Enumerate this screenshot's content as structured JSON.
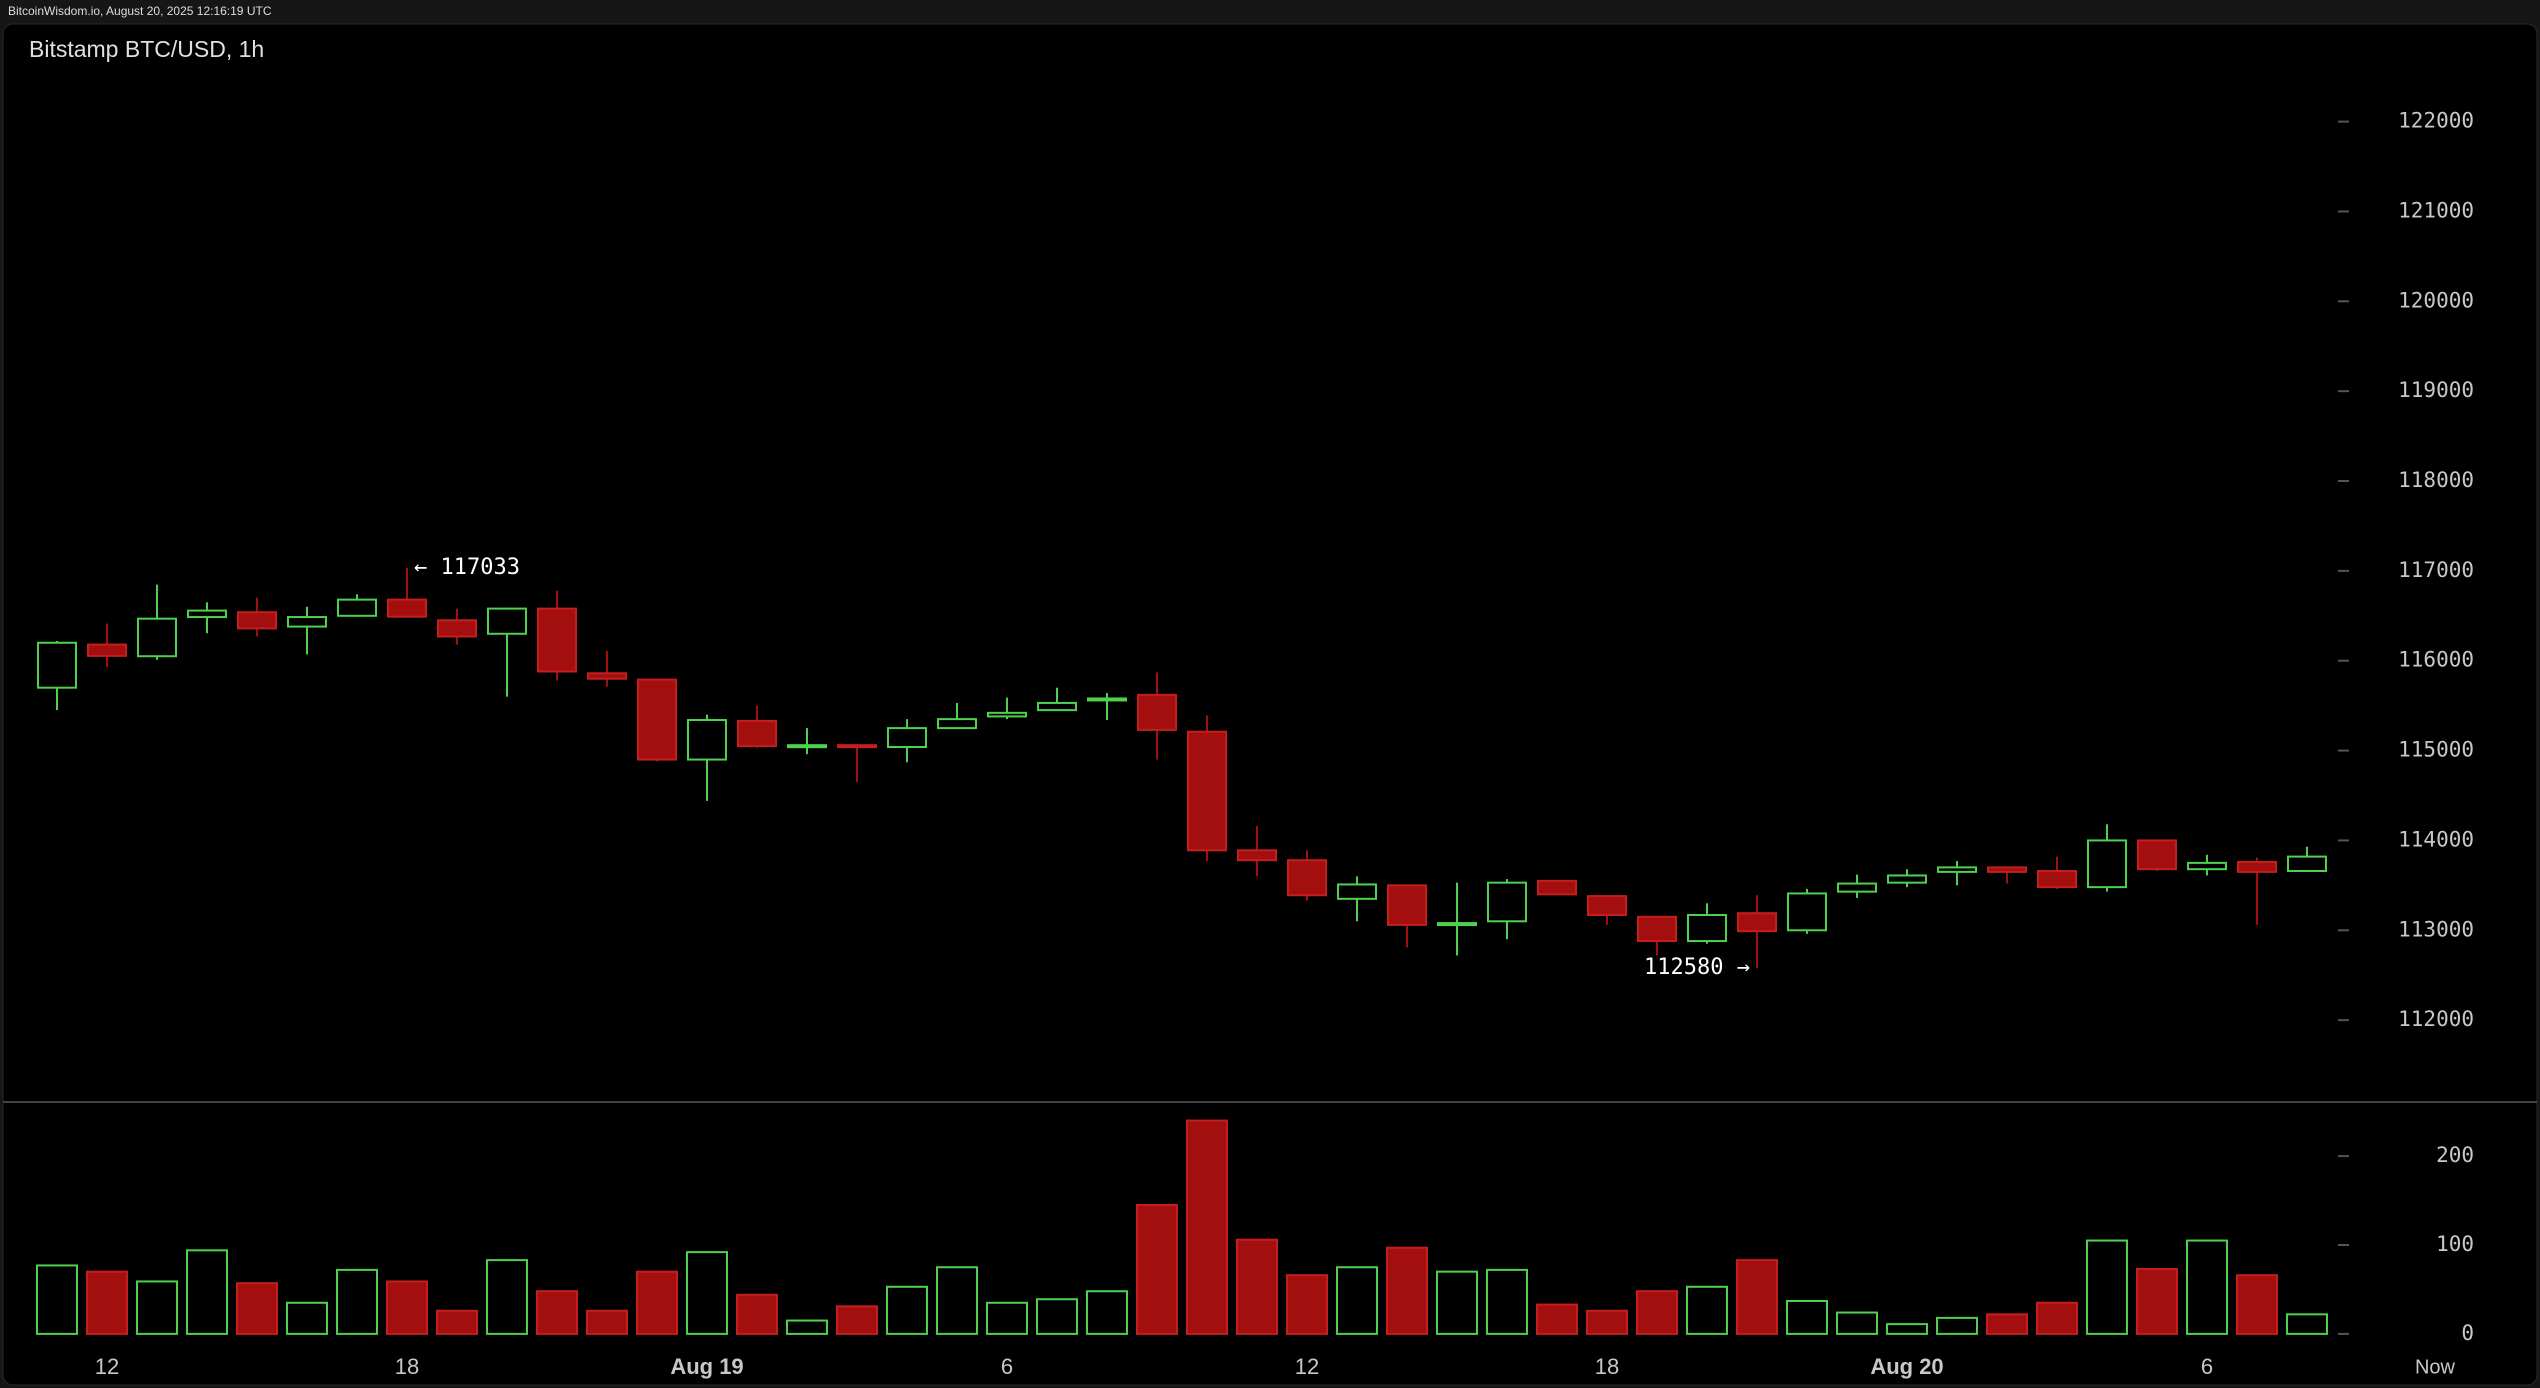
{
  "chart_data": {
    "type": "candlestick",
    "header": "BitcoinWisdom.io, August 20, 2025 12:16:19 UTC",
    "title": "Bitstamp BTC/USD, 1h",
    "categories": [
      null,
      "12",
      null,
      null,
      null,
      null,
      null,
      "18",
      null,
      null,
      null,
      null,
      null,
      "Aug 19",
      null,
      null,
      null,
      null,
      null,
      "6",
      null,
      null,
      null,
      null,
      null,
      "12",
      null,
      null,
      null,
      null,
      null,
      "18",
      null,
      null,
      null,
      null,
      null,
      "Aug 20",
      null,
      null,
      null,
      null,
      null,
      "6",
      null,
      null
    ],
    "now_label": "Now",
    "open": [
      115700,
      116180,
      116050,
      116486,
      116540,
      116380,
      116500,
      116680,
      116450,
      116300,
      116580,
      115860,
      115790,
      114900,
      115330,
      115040,
      115060,
      115040,
      115250,
      115380,
      115450,
      115560,
      115620,
      115210,
      113890,
      113780,
      113350,
      113500,
      113060,
      113100,
      113550,
      113380,
      113150,
      112880,
      113190,
      113000,
      113430,
      113530,
      113650,
      113700,
      113660,
      113480,
      114000,
      113680,
      113760,
      113660
    ],
    "high": [
      116220,
      116414,
      116847,
      116650,
      116703,
      116600,
      116740,
      117033,
      116580,
      116590,
      116780,
      116110,
      115800,
      115400,
      115500,
      115250,
      115070,
      115350,
      115530,
      115590,
      115700,
      115640,
      115870,
      115390,
      114160,
      113890,
      113600,
      113500,
      113530,
      113570,
      113560,
      113390,
      113160,
      113300,
      113390,
      113460,
      113620,
      113680,
      113770,
      113710,
      113820,
      114180,
      114010,
      113840,
      113810,
      113930
    ],
    "low": [
      115450,
      115928,
      116010,
      116306,
      116270,
      116070,
      116490,
      116480,
      116180,
      115600,
      115780,
      115710,
      114880,
      114440,
      115030,
      114960,
      114650,
      114870,
      115240,
      115350,
      115450,
      115340,
      114900,
      113770,
      113600,
      113330,
      113100,
      112810,
      112720,
      112900,
      113390,
      113060,
      112720,
      112850,
      112580,
      112960,
      113360,
      113480,
      113500,
      113520,
      113460,
      113430,
      113660,
      113610,
      113060,
      113650
    ],
    "close": [
      116200,
      116054,
      116468,
      116558,
      116360,
      116486,
      116680,
      116490,
      116270,
      116580,
      115880,
      115800,
      114900,
      115340,
      115050,
      115060,
      115040,
      115250,
      115350,
      115420,
      115530,
      115580,
      115230,
      113890,
      113780,
      113390,
      113510,
      113060,
      113080,
      113530,
      113400,
      113170,
      112880,
      113170,
      112990,
      113410,
      113520,
      113610,
      113700,
      113650,
      113480,
      114000,
      113680,
      113750,
      113650,
      113820
    ],
    "volume": [
      77,
      70,
      59,
      94,
      57,
      35,
      72,
      59,
      26,
      83,
      48,
      26,
      70,
      92,
      44,
      15,
      31,
      53,
      75,
      35,
      39,
      48,
      145,
      240,
      106,
      66,
      75,
      97,
      70,
      72,
      33,
      26,
      48,
      53,
      83,
      37,
      24,
      11,
      18,
      22,
      35,
      105,
      73,
      105,
      66,
      22
    ],
    "ylim": [
      111100,
      122630
    ],
    "yticks": [
      112000,
      113000,
      114000,
      115000,
      116000,
      117000,
      118000,
      119000,
      120000,
      121000,
      122000
    ],
    "volume_ylim": [
      -17,
      262
    ],
    "volume_yticks": [
      0,
      100,
      200
    ],
    "up_color": "#4fd14f",
    "down_color": "#a30f0f",
    "annotations": [
      {
        "label": "← 117033",
        "value": 117033
      },
      {
        "label": "112580 →",
        "value": 112580
      }
    ]
  }
}
